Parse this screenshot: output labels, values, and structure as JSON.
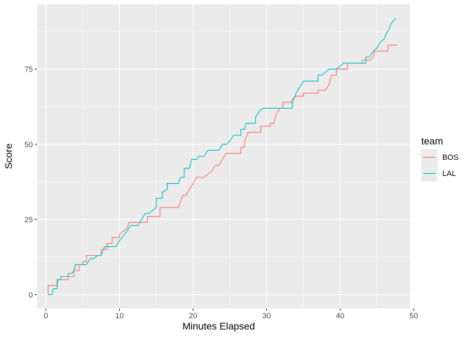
{
  "chart_data": {
    "type": "line",
    "title": "",
    "xlabel": "Minutes Elapsed",
    "ylabel": "Score",
    "xlim": [
      -1.2,
      49.5
    ],
    "ylim": [
      -4.6,
      96.6
    ],
    "x_ticks": [
      0,
      10,
      20,
      30,
      40,
      50
    ],
    "x_tick_labels": [
      "0",
      "10",
      "20",
      "30",
      "40",
      "50"
    ],
    "y_ticks": [
      0,
      25,
      50,
      75
    ],
    "y_tick_labels": [
      "0",
      "25",
      "50",
      "75"
    ],
    "grid": true,
    "legend": {
      "title": "team",
      "position": "right",
      "entries": [
        "BOS",
        "LAL"
      ]
    },
    "colors": {
      "BOS": "#F8766D",
      "LAL": "#00BFC4",
      "panel": "#EBEBEB",
      "grid": "#FFFFFF",
      "text": "#4D4D4D"
    },
    "series": [
      {
        "name": "BOS",
        "points": [
          [
            0.3,
            0
          ],
          [
            0.3,
            3
          ],
          [
            1.5,
            3
          ],
          [
            1.5,
            5
          ],
          [
            2.2,
            5
          ],
          [
            3.0,
            5
          ],
          [
            3.0,
            6
          ],
          [
            3.8,
            6
          ],
          [
            3.8,
            8
          ],
          [
            4.5,
            8
          ],
          [
            4.5,
            10
          ],
          [
            5.0,
            10
          ],
          [
            5.0,
            11
          ],
          [
            5.5,
            11
          ],
          [
            5.5,
            13
          ],
          [
            7.5,
            13
          ],
          [
            7.5,
            15
          ],
          [
            8.3,
            15
          ],
          [
            8.3,
            17
          ],
          [
            9.0,
            17
          ],
          [
            9.0,
            19
          ],
          [
            10.0,
            19
          ],
          [
            10.0,
            20
          ],
          [
            11.0,
            22
          ],
          [
            11.3,
            24
          ],
          [
            12.5,
            24
          ],
          [
            12.5,
            24
          ],
          [
            13.8,
            24
          ],
          [
            13.8,
            26
          ],
          [
            15.5,
            26
          ],
          [
            15.5,
            29
          ],
          [
            18.0,
            29
          ],
          [
            18.3,
            31
          ],
          [
            18.6,
            33
          ],
          [
            19.0,
            33
          ],
          [
            19.5,
            35
          ],
          [
            20.0,
            37
          ],
          [
            20.5,
            39
          ],
          [
            21.5,
            39
          ],
          [
            22.0,
            40
          ],
          [
            22.5,
            41
          ],
          [
            23.0,
            43
          ],
          [
            23.5,
            43
          ],
          [
            24.0,
            45
          ],
          [
            24.5,
            47
          ],
          [
            26.5,
            47
          ],
          [
            26.5,
            49
          ],
          [
            27.0,
            49
          ],
          [
            27.0,
            51
          ],
          [
            27.5,
            54
          ],
          [
            28.5,
            54
          ],
          [
            29.2,
            54
          ],
          [
            29.2,
            56
          ],
          [
            30.5,
            56
          ],
          [
            30.5,
            57
          ],
          [
            31.0,
            57
          ],
          [
            31.3,
            60
          ],
          [
            31.8,
            62
          ],
          [
            32.2,
            62
          ],
          [
            32.2,
            64
          ],
          [
            33.5,
            64
          ],
          [
            33.5,
            65
          ],
          [
            34.0,
            66
          ],
          [
            35.0,
            66
          ],
          [
            35.0,
            67
          ],
          [
            36.0,
            67
          ],
          [
            37.0,
            67
          ],
          [
            37.0,
            68
          ],
          [
            38.0,
            68
          ],
          [
            38.5,
            70
          ],
          [
            38.8,
            73
          ],
          [
            39.5,
            73
          ],
          [
            39.5,
            75
          ],
          [
            41.0,
            75
          ],
          [
            41.0,
            77
          ],
          [
            42.0,
            77
          ],
          [
            43.0,
            77
          ],
          [
            43.0,
            78
          ],
          [
            44.0,
            78
          ],
          [
            44.5,
            79
          ],
          [
            44.7,
            81
          ],
          [
            46.5,
            81
          ],
          [
            46.5,
            83
          ],
          [
            47.8,
            83
          ]
        ]
      },
      {
        "name": "LAL",
        "points": [
          [
            0.3,
            0
          ],
          [
            0.8,
            0
          ],
          [
            1.0,
            2
          ],
          [
            1.5,
            2
          ],
          [
            1.6,
            5
          ],
          [
            2.0,
            5
          ],
          [
            2.0,
            6
          ],
          [
            3.0,
            6
          ],
          [
            3.0,
            7
          ],
          [
            3.5,
            7
          ],
          [
            3.8,
            8
          ],
          [
            4.0,
            10
          ],
          [
            5.0,
            10
          ],
          [
            5.5,
            10
          ],
          [
            6.0,
            12
          ],
          [
            6.5,
            12
          ],
          [
            7.0,
            13
          ],
          [
            7.5,
            13
          ],
          [
            8.0,
            16
          ],
          [
            8.5,
            16
          ],
          [
            9.5,
            16
          ],
          [
            10.0,
            18
          ],
          [
            11.0,
            21
          ],
          [
            11.5,
            23
          ],
          [
            12.5,
            23
          ],
          [
            13.0,
            25
          ],
          [
            13.5,
            27
          ],
          [
            14.0,
            27
          ],
          [
            14.5,
            28
          ],
          [
            15.0,
            29
          ],
          [
            15.0,
            32
          ],
          [
            15.8,
            32
          ],
          [
            15.8,
            34
          ],
          [
            16.5,
            35
          ],
          [
            16.5,
            37
          ],
          [
            18.0,
            37
          ],
          [
            18.3,
            39
          ],
          [
            18.8,
            39
          ],
          [
            18.8,
            42
          ],
          [
            19.5,
            42
          ],
          [
            19.8,
            45
          ],
          [
            20.5,
            45
          ],
          [
            20.8,
            46
          ],
          [
            21.5,
            46
          ],
          [
            22.0,
            48
          ],
          [
            23.5,
            48
          ],
          [
            24.0,
            50
          ],
          [
            24.5,
            50
          ],
          [
            25.0,
            51
          ],
          [
            25.5,
            53
          ],
          [
            26.5,
            53
          ],
          [
            26.5,
            55
          ],
          [
            27.0,
            55
          ],
          [
            27.2,
            57
          ],
          [
            28.5,
            57
          ],
          [
            28.5,
            59
          ],
          [
            29.0,
            61
          ],
          [
            29.5,
            62
          ],
          [
            31.0,
            62
          ],
          [
            33.5,
            62
          ],
          [
            33.5,
            64
          ],
          [
            34.0,
            67
          ],
          [
            34.5,
            69
          ],
          [
            35.0,
            71
          ],
          [
            37.0,
            71
          ],
          [
            37.0,
            73
          ],
          [
            37.5,
            73
          ],
          [
            38.0,
            74
          ],
          [
            38.5,
            75
          ],
          [
            39.5,
            75
          ],
          [
            40.0,
            76
          ],
          [
            40.5,
            77
          ],
          [
            43.5,
            77
          ],
          [
            43.5,
            79
          ],
          [
            44.0,
            79
          ],
          [
            44.5,
            81
          ],
          [
            45.0,
            82
          ],
          [
            45.5,
            84
          ],
          [
            46.0,
            85
          ],
          [
            46.3,
            87
          ],
          [
            46.6,
            88
          ],
          [
            46.9,
            90
          ],
          [
            47.2,
            91
          ],
          [
            47.6,
            92
          ]
        ]
      }
    ]
  }
}
